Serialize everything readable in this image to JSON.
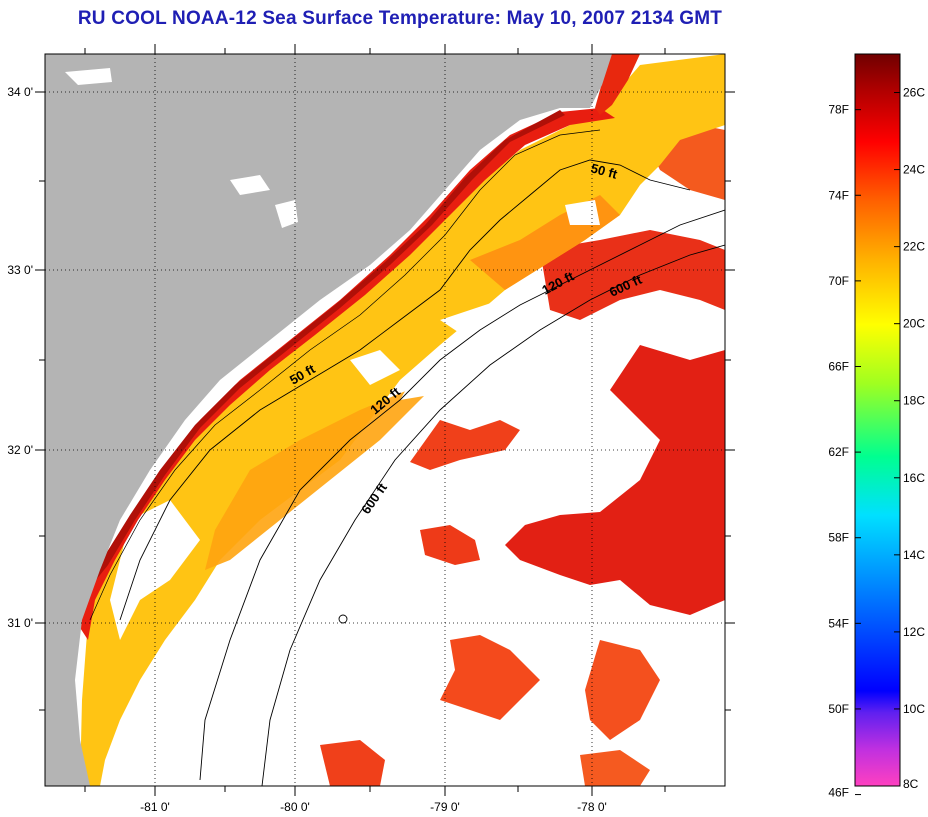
{
  "title": "RU COOL  NOAA-12  Sea Surface Temperature:  May 10, 2007 2134 GMT",
  "map": {
    "lat_labels": [
      "34 0'",
      "33 0'",
      "32 0'",
      "31 0'"
    ],
    "lon_labels": [
      "-81 0'",
      "-80 0'",
      "-79 0'",
      "-78 0'"
    ],
    "lat_range": [
      30.2,
      34.2
    ],
    "lon_range": [
      -81.5,
      -77.1
    ],
    "depth_labels": [
      "50 ft",
      "120 ft",
      "600 ft",
      "50 ft",
      "120 ft",
      "600 ft"
    ],
    "colors": {
      "land": "#b4b4b4",
      "cloud": "#ffffff",
      "coastline": "#000000"
    }
  },
  "colorbar": {
    "fahrenheit_labels": [
      "78F",
      "74F",
      "70F",
      "66F",
      "62F",
      "58F",
      "54F",
      "50F",
      "46F"
    ],
    "celsius_labels": [
      "26C",
      "24C",
      "22C",
      "20C",
      "18C",
      "16C",
      "14C",
      "12C",
      "10C",
      "8C"
    ],
    "range_c": [
      8,
      27
    ],
    "stops": [
      "#ff40c0",
      "#a020f0",
      "#0000ff",
      "#0090ff",
      "#00ffff",
      "#00ff80",
      "#c0ff00",
      "#ffff00",
      "#ffc000",
      "#ff6000",
      "#ff0000",
      "#b00000",
      "#700000"
    ]
  }
}
